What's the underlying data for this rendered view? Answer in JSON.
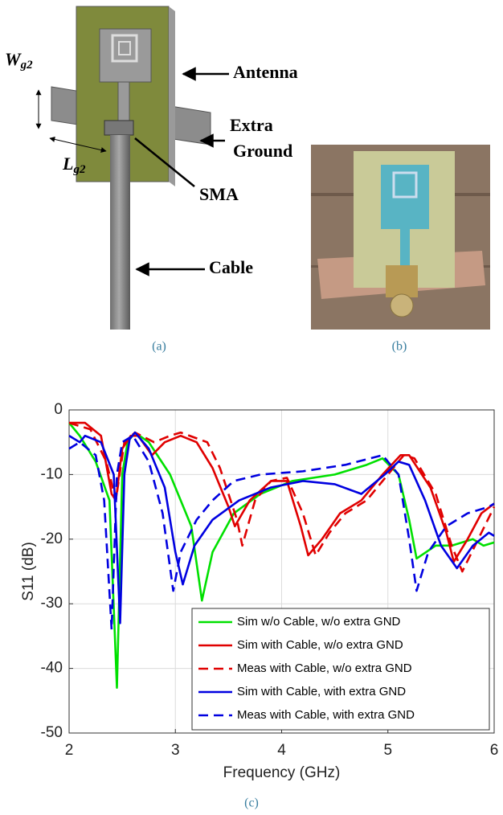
{
  "figure": {
    "panel_a": {
      "wg2": {
        "main": "W",
        "sub": "g2"
      },
      "lg2": {
        "main": "L",
        "sub": "g2"
      },
      "antenna": "Antenna",
      "extra_ground": [
        "Extra",
        "Ground"
      ],
      "sma": "SMA",
      "cable": "Cable",
      "caption": "(a)"
    },
    "panel_b": {
      "caption": "(b)"
    },
    "panel_c": {
      "caption": "(c)"
    }
  },
  "chart_data": {
    "type": "line",
    "xlabel": "Frequency (GHz)",
    "ylabel": "S11 (dB)",
    "xlim": [
      2,
      6
    ],
    "ylim": [
      -50,
      0
    ],
    "xticks": [
      2,
      3,
      4,
      5,
      6
    ],
    "yticks": [
      0,
      -10,
      -20,
      -30,
      -40,
      -50
    ],
    "grid": true,
    "legend": "lower right",
    "series": [
      {
        "name": "Sim w/o Cable, w/o extra GND",
        "color": "#00e000",
        "dash": false,
        "x": [
          2.0,
          2.1,
          2.25,
          2.38,
          2.45,
          2.5,
          2.55,
          2.62,
          2.75,
          2.95,
          3.15,
          3.25,
          3.35,
          3.55,
          3.8,
          4.1,
          4.5,
          4.8,
          4.95,
          5.1,
          5.2,
          5.27,
          5.45,
          5.6,
          5.8,
          5.9,
          6.0
        ],
        "values": [
          -2,
          -4,
          -8,
          -14,
          -43,
          -10,
          -5,
          -3.5,
          -5,
          -10,
          -18,
          -29.5,
          -22,
          -16,
          -13,
          -11,
          -10,
          -8.5,
          -7.5,
          -10,
          -17,
          -23,
          -21,
          -21,
          -20,
          -21,
          -20.5
        ]
      },
      {
        "name": "Sim with Cable, w/o extra GND",
        "color": "#e00000",
        "dash": false,
        "x": [
          2.0,
          2.15,
          2.3,
          2.4,
          2.44,
          2.5,
          2.58,
          2.65,
          2.78,
          2.9,
          3.05,
          3.2,
          3.35,
          3.5,
          3.56,
          3.7,
          3.9,
          4.05,
          4.18,
          4.25,
          4.38,
          4.55,
          4.75,
          4.95,
          5.12,
          5.2,
          5.4,
          5.55,
          5.62,
          5.75,
          5.88,
          6.0
        ],
        "values": [
          -2,
          -2,
          -4,
          -13,
          -14,
          -6,
          -4,
          -4,
          -7,
          -5,
          -4,
          -5,
          -9,
          -15,
          -18,
          -14,
          -11,
          -11,
          -18,
          -22.5,
          -20,
          -16,
          -14,
          -10,
          -7,
          -7,
          -12,
          -19,
          -23.5,
          -20,
          -16,
          -14.5
        ]
      },
      {
        "name": "Meas with Cable, w/o extra GND",
        "color": "#e00000",
        "dash": true,
        "x": [
          2.0,
          2.2,
          2.35,
          2.44,
          2.52,
          2.62,
          2.8,
          2.95,
          3.05,
          3.3,
          3.42,
          3.58,
          3.63,
          3.75,
          3.9,
          4.05,
          4.2,
          4.32,
          4.45,
          4.6,
          4.8,
          5.0,
          5.15,
          5.25,
          5.45,
          5.6,
          5.7,
          5.85,
          6.0
        ],
        "values": [
          -2,
          -3,
          -8,
          -14,
          -5,
          -3.5,
          -5,
          -4,
          -3.5,
          -5,
          -9,
          -17,
          -21,
          -14,
          -11,
          -10.5,
          -16,
          -22.5,
          -19,
          -16,
          -14,
          -10,
          -7,
          -7.5,
          -13,
          -21,
          -25,
          -20,
          -15
        ]
      },
      {
        "name": "Sim with Cable, with extra GND",
        "color": "#0000e0",
        "dash": false,
        "x": [
          2.0,
          2.1,
          2.15,
          2.3,
          2.42,
          2.48,
          2.52,
          2.57,
          2.62,
          2.75,
          2.9,
          3.0,
          3.07,
          3.18,
          3.35,
          3.6,
          3.9,
          4.2,
          4.5,
          4.75,
          4.97,
          5.1,
          5.2,
          5.35,
          5.5,
          5.65,
          5.8,
          5.95,
          6.0
        ],
        "values": [
          -4,
          -5,
          -4,
          -5,
          -10,
          -33,
          -10,
          -4.5,
          -3.5,
          -6,
          -12,
          -22,
          -27,
          -21,
          -17,
          -14,
          -12,
          -11,
          -11.5,
          -13,
          -10,
          -8,
          -8.5,
          -14,
          -21,
          -24.5,
          -21,
          -19,
          -19.5
        ]
      },
      {
        "name": "Meas with Cable, with extra GND",
        "color": "#0000e0",
        "dash": true,
        "x": [
          2.0,
          2.1,
          2.25,
          2.33,
          2.4,
          2.45,
          2.5,
          2.6,
          2.75,
          2.88,
          2.98,
          3.05,
          3.2,
          3.35,
          3.55,
          3.8,
          4.2,
          4.6,
          4.95,
          5.1,
          5.2,
          5.27,
          5.38,
          5.55,
          5.75,
          5.95,
          6.0
        ],
        "values": [
          -6,
          -5,
          -7,
          -14,
          -34,
          -10,
          -5,
          -4,
          -8,
          -16,
          -28,
          -22,
          -17,
          -14,
          -11,
          -10,
          -9.5,
          -8.5,
          -7,
          -10,
          -20,
          -28,
          -22,
          -18,
          -16,
          -15,
          -14.5
        ]
      }
    ]
  }
}
